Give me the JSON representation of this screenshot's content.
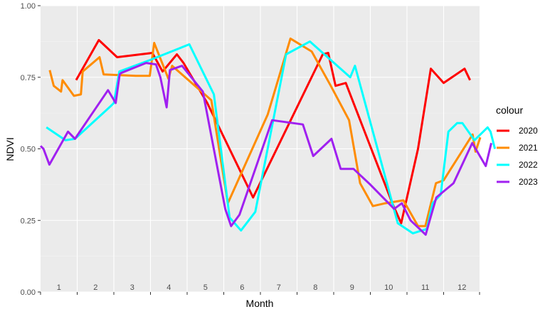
{
  "chart_data": {
    "type": "line",
    "xlabel": "Month",
    "ylabel": "NDVI",
    "ylim": [
      0,
      1
    ],
    "yticks": [
      "0.00",
      "0.25",
      "0.50",
      "0.75",
      "1.00"
    ],
    "xlim": [
      0,
      12
    ],
    "month_labels": [
      "1",
      "2",
      "3",
      "4",
      "5",
      "6",
      "7",
      "8",
      "9",
      "10",
      "11",
      "12"
    ],
    "legend": {
      "title": "colour",
      "position": "right"
    },
    "grid": true,
    "background": "#ebebeb",
    "series": [
      {
        "name": "2020",
        "color": "#ff0000",
        "points": [
          [
            0.97,
            0.74
          ],
          [
            1.59,
            0.88
          ],
          [
            2.09,
            0.82
          ],
          [
            3.05,
            0.835
          ],
          [
            3.33,
            0.77
          ],
          [
            3.72,
            0.83
          ],
          [
            3.9,
            0.8
          ],
          [
            4.55,
            0.66
          ],
          [
            5.8,
            0.33
          ],
          [
            7.7,
            0.83
          ],
          [
            7.85,
            0.835
          ],
          [
            8.05,
            0.72
          ],
          [
            8.33,
            0.73
          ],
          [
            9.6,
            0.31
          ],
          [
            9.84,
            0.24
          ],
          [
            10.3,
            0.5
          ],
          [
            10.65,
            0.78
          ],
          [
            11.0,
            0.73
          ],
          [
            11.57,
            0.78
          ],
          [
            11.72,
            0.74
          ]
        ]
      },
      {
        "name": "2021",
        "color": "#ff8c00",
        "points": [
          [
            0.25,
            0.775
          ],
          [
            0.36,
            0.72
          ],
          [
            0.56,
            0.7
          ],
          [
            0.6,
            0.74
          ],
          [
            0.91,
            0.685
          ],
          [
            1.1,
            0.69
          ],
          [
            1.15,
            0.77
          ],
          [
            1.61,
            0.82
          ],
          [
            1.72,
            0.76
          ],
          [
            2.6,
            0.755
          ],
          [
            2.98,
            0.755
          ],
          [
            3.1,
            0.87
          ],
          [
            3.49,
            0.745
          ],
          [
            3.59,
            0.79
          ],
          [
            4.66,
            0.67
          ],
          [
            5.11,
            0.31
          ],
          [
            6.2,
            0.62
          ],
          [
            6.82,
            0.885
          ],
          [
            7.4,
            0.84
          ],
          [
            7.92,
            0.72
          ],
          [
            8.42,
            0.6
          ],
          [
            8.72,
            0.38
          ],
          [
            9.07,
            0.3
          ],
          [
            9.41,
            0.31
          ],
          [
            9.9,
            0.32
          ],
          [
            10.3,
            0.23
          ],
          [
            10.5,
            0.23
          ],
          [
            10.79,
            0.38
          ],
          [
            11.0,
            0.39
          ],
          [
            11.79,
            0.55
          ],
          [
            11.87,
            0.49
          ],
          [
            12.0,
            0.54
          ]
        ]
      },
      {
        "name": "2022",
        "color": "#00ffff",
        "points": [
          [
            0.16,
            0.575
          ],
          [
            0.68,
            0.53
          ],
          [
            0.94,
            0.535
          ],
          [
            1.92,
            0.65
          ],
          [
            2.0,
            0.66
          ],
          [
            2.15,
            0.77
          ],
          [
            2.98,
            0.81
          ],
          [
            4.06,
            0.865
          ],
          [
            4.73,
            0.69
          ],
          [
            5.16,
            0.26
          ],
          [
            5.47,
            0.215
          ],
          [
            5.86,
            0.28
          ],
          [
            6.7,
            0.83
          ],
          [
            7.35,
            0.875
          ],
          [
            8.45,
            0.75
          ],
          [
            8.58,
            0.79
          ],
          [
            9.75,
            0.24
          ],
          [
            10.16,
            0.205
          ],
          [
            10.54,
            0.22
          ],
          [
            10.7,
            0.31
          ],
          [
            10.92,
            0.34
          ],
          [
            11.13,
            0.56
          ],
          [
            11.37,
            0.59
          ],
          [
            11.51,
            0.59
          ],
          [
            11.84,
            0.53
          ],
          [
            12.2,
            0.575
          ],
          [
            12.28,
            0.56
          ],
          [
            12.4,
            0.5
          ]
        ]
      },
      {
        "name": "2023",
        "color": "#a020f0",
        "points": [
          [
            0.0,
            0.51
          ],
          [
            0.08,
            0.5
          ],
          [
            0.24,
            0.445
          ],
          [
            0.75,
            0.56
          ],
          [
            0.94,
            0.535
          ],
          [
            1.84,
            0.705
          ],
          [
            2.05,
            0.66
          ],
          [
            2.16,
            0.76
          ],
          [
            2.2,
            0.765
          ],
          [
            2.88,
            0.8
          ],
          [
            3.15,
            0.795
          ],
          [
            3.27,
            0.75
          ],
          [
            3.44,
            0.645
          ],
          [
            3.53,
            0.775
          ],
          [
            3.86,
            0.79
          ],
          [
            4.43,
            0.7
          ],
          [
            5.04,
            0.29
          ],
          [
            5.2,
            0.23
          ],
          [
            5.43,
            0.27
          ],
          [
            6.32,
            0.6
          ],
          [
            7.16,
            0.585
          ],
          [
            7.44,
            0.475
          ],
          [
            7.94,
            0.535
          ],
          [
            8.19,
            0.43
          ],
          [
            8.54,
            0.43
          ],
          [
            9.0,
            0.375
          ],
          [
            9.65,
            0.29
          ],
          [
            9.86,
            0.31
          ],
          [
            10.1,
            0.25
          ],
          [
            10.51,
            0.2
          ],
          [
            10.62,
            0.25
          ],
          [
            10.8,
            0.33
          ],
          [
            11.27,
            0.38
          ],
          [
            11.78,
            0.52
          ],
          [
            12.15,
            0.44
          ],
          [
            12.3,
            0.52
          ]
        ]
      }
    ]
  }
}
